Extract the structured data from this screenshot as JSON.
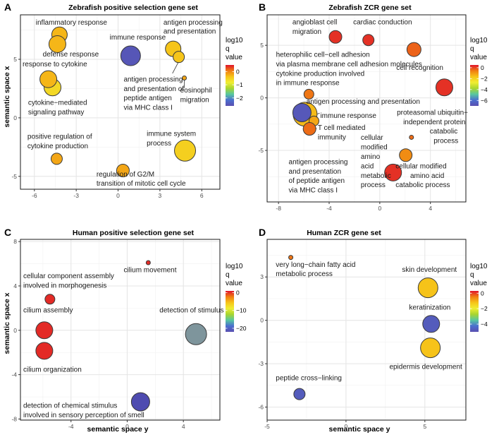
{
  "palette": [
    "#5a4fb0",
    "#4a6fcf",
    "#58c7a0",
    "#a8d52f",
    "#f0ee32",
    "#f6c419",
    "#f07d12",
    "#e0142c"
  ],
  "chart_data": [
    {
      "type": "scatter",
      "panel": "A",
      "title": "Zebrafish positive selection gene set",
      "xlabel": "",
      "ylabel": "semantic space x",
      "xlim": [
        -7,
        7.3
      ],
      "ylim": [
        -6.1,
        8.8
      ],
      "xticks": [
        -6,
        -3,
        0,
        3,
        6
      ],
      "yticks": [
        -5,
        0,
        5
      ],
      "legend": {
        "title": [
          "log10",
          "q",
          "value"
        ],
        "min": -2.6,
        "max": 0.5,
        "ticks": [
          0,
          -1,
          -2
        ]
      },
      "points": [
        {
          "x": -4.2,
          "y": 7.1,
          "color": -0.3,
          "size": 11,
          "label": "inflammatory response"
        },
        {
          "x": -4.35,
          "y": 6.3,
          "color": -0.3,
          "size": 12,
          "label": "defense response"
        },
        {
          "x": -4.7,
          "y": 2.6,
          "color": -0.6,
          "size": 12
        },
        {
          "x": -5.0,
          "y": 3.3,
          "color": -0.3,
          "size": 12,
          "label": "response to cytokine"
        },
        {
          "x": 0.9,
          "y": 5.3,
          "color": -2.5,
          "size": 14,
          "label": "immune response"
        },
        {
          "x": 3.95,
          "y": 5.9,
          "color": -0.4,
          "size": 11,
          "label": "antigen processing and presentation"
        },
        {
          "x": 4.35,
          "y": 5.2,
          "color": -0.4,
          "size": 8,
          "label": "antigen processing and presentation of peptide antigen via MHC class I"
        },
        {
          "x": 4.75,
          "y": 3.4,
          "color": -0.2,
          "size": 3,
          "label": "eosinophil migration"
        },
        {
          "x": -4.4,
          "y": -3.5,
          "color": -0.2,
          "size": 8,
          "label": "positive regulation of cytokine production"
        },
        {
          "x": 0.35,
          "y": -4.5,
          "color": -0.2,
          "size": 9,
          "label": "regulation of G2/M transition of mitotic cell cycle"
        },
        {
          "x": 4.8,
          "y": -2.8,
          "color": -0.5,
          "size": 15,
          "label": "immune system process"
        }
      ],
      "annotations": [
        {
          "text": "inflammatory response",
          "x": -5.9,
          "y": 7.95
        },
        {
          "text": "defense response",
          "x": -5.4,
          "y": 5.25
        },
        {
          "text": "response to cytokine",
          "x": -6.85,
          "y": 4.4
        },
        {
          "text": "cytokine−mediated",
          "x": -6.45,
          "y": 1.1
        },
        {
          "text": "signaling pathway",
          "x": -6.45,
          "y": 0.3
        },
        {
          "text": "immune response",
          "x": -0.6,
          "y": 6.7
        },
        {
          "text": "antigen processing",
          "x": 3.25,
          "y": 7.95
        },
        {
          "text": "and presentation",
          "x": 3.25,
          "y": 7.2
        },
        {
          "text": "antigen processing",
          "x": 0.4,
          "y": 3.1
        },
        {
          "text": "and presentation of",
          "x": 0.4,
          "y": 2.3
        },
        {
          "text": "peptide antigen",
          "x": 0.4,
          "y": 1.5
        },
        {
          "text": "via MHC class I",
          "x": 0.4,
          "y": 0.7
        },
        {
          "text": "eosinophil",
          "x": 4.45,
          "y": 2.15
        },
        {
          "text": "migration",
          "x": 4.45,
          "y": 1.35
        },
        {
          "text": "positive regulation of",
          "x": -6.5,
          "y": -1.8
        },
        {
          "text": "cytokine production",
          "x": -6.5,
          "y": -2.6
        },
        {
          "text": "immune system",
          "x": 2.05,
          "y": -1.55
        },
        {
          "text": "process",
          "x": 2.05,
          "y": -2.35
        },
        {
          "text": "regulation of G2/M",
          "x": -1.55,
          "y": -5.0
        },
        {
          "text": "transition of mitotic cell cycle",
          "x": -1.55,
          "y": -5.8
        }
      ],
      "leaders": [
        {
          "x1": 4.3,
          "y1": 4.7,
          "x2": 3.9,
          "y2": 3.8
        },
        {
          "x1": 4.75,
          "y1": 3.4,
          "x2": 4.75,
          "y2": 2.55
        }
      ]
    },
    {
      "type": "scatter",
      "panel": "B",
      "title": "Zebrafish ZCR gene set",
      "xlabel": "",
      "ylabel": "",
      "xlim": [
        -8.9,
        6.8
      ],
      "ylim": [
        -9.9,
        7.9
      ],
      "xticks": [
        -8,
        -4,
        0,
        4
      ],
      "yticks": [
        -5,
        0,
        5
      ],
      "legend": {
        "title": [
          "log10",
          "q",
          "value"
        ],
        "min": -7,
        "max": 0.5,
        "ticks": [
          0,
          -2,
          -4,
          -6
        ]
      },
      "points": [
        {
          "x": -3.5,
          "y": 5.8,
          "color": 0.2,
          "size": 9,
          "label": "angioblast cell migration"
        },
        {
          "x": -0.9,
          "y": 5.5,
          "color": 0.2,
          "size": 8,
          "label": "cardiac conduction"
        },
        {
          "x": 2.7,
          "y": 4.6,
          "color": -0.3,
          "size": 10,
          "label": "heterophilic cell-cell adhesion via plasma membrane cell adhesion molecules"
        },
        {
          "x": 5.1,
          "y": 1.0,
          "color": 0.2,
          "size": 12,
          "label": "cell recognition"
        },
        {
          "x": -5.6,
          "y": 0.35,
          "color": -0.5,
          "size": 7,
          "label": "cytokine production involved in immune response"
        },
        {
          "x": -5.9,
          "y": -1.55,
          "color": -1.5,
          "size": 17
        },
        {
          "x": -6.15,
          "y": -1.4,
          "color": -6.7,
          "size": 13
        },
        {
          "x": -5.2,
          "y": -2.2,
          "color": -1.2,
          "size": 7,
          "label": "T cell mediated immunity"
        },
        {
          "x": -5.55,
          "y": -2.95,
          "color": -0.4,
          "size": 9
        },
        {
          "x": 2.5,
          "y": -3.75,
          "color": -0.4,
          "size": 3,
          "label": "proteasomal ubiquitin-independent protein catabolic process"
        },
        {
          "x": 1.05,
          "y": -7.1,
          "color": 0.2,
          "size": 12
        },
        {
          "x": 2.05,
          "y": -5.45,
          "color": -0.8,
          "size": 9,
          "label": "cellular modified amino acid catabolic process"
        }
      ],
      "annotations": [
        {
          "text": "angioblast cell",
          "x": -6.9,
          "y": 7.0
        },
        {
          "text": "migration",
          "x": -6.9,
          "y": 6.1
        },
        {
          "text": "cardiac conduction",
          "x": -2.1,
          "y": 7.0
        },
        {
          "text": "heterophilic cell−cell adhesion",
          "x": -8.2,
          "y": 3.9
        },
        {
          "text": "via plasma membrane cell adhesion molecules",
          "x": -8.2,
          "y": 3.0
        },
        {
          "text": "cell recognition",
          "x": 1.3,
          "y": 2.65
        },
        {
          "text": "cytokine production involved",
          "x": -8.2,
          "y": 2.1
        },
        {
          "text": "in immune response",
          "x": -8.2,
          "y": 1.2
        },
        {
          "text": "antigen processing and presentation",
          "x": -5.8,
          "y": -0.55
        },
        {
          "text": "immune response",
          "x": -4.7,
          "y": -1.9
        },
        {
          "text": "T cell mediated",
          "x": -4.9,
          "y": -3.05
        },
        {
          "text": "immunity",
          "x": -4.9,
          "y": -3.95
        },
        {
          "text": "proteasomal ubiquitin−",
          "x": 1.35,
          "y": -1.6
        },
        {
          "text": "independent protein",
          "x": 1.85,
          "y": -2.5
        },
        {
          "text": "catabolic",
          "x": 3.95,
          "y": -3.4
        },
        {
          "text": "process",
          "x": 4.25,
          "y": -4.3
        },
        {
          "text": "antigen processing",
          "x": -7.2,
          "y": -6.3
        },
        {
          "text": "and presentation",
          "x": -7.2,
          "y": -7.2
        },
        {
          "text": "of peptide antigen",
          "x": -7.2,
          "y": -8.1
        },
        {
          "text": "via MHC class I",
          "x": -7.2,
          "y": -9.0
        },
        {
          "text": "cellular",
          "x": -1.5,
          "y": -4.0
        },
        {
          "text": "modified",
          "x": -1.5,
          "y": -4.9
        },
        {
          "text": "amino",
          "x": -1.5,
          "y": -5.8
        },
        {
          "text": "acid",
          "x": -1.5,
          "y": -6.7
        },
        {
          "text": "metabolic",
          "x": -1.5,
          "y": -7.6
        },
        {
          "text": "process",
          "x": -1.5,
          "y": -8.5
        },
        {
          "text": "cellular modified",
          "x": 1.25,
          "y": -6.7
        },
        {
          "text": "amino acid",
          "x": 2.4,
          "y": -7.6
        },
        {
          "text": "catabolic process",
          "x": 1.25,
          "y": -8.5
        }
      ],
      "leaders": [
        {
          "x1": -5.4,
          "y1": -1.75,
          "x2": -4.75,
          "y2": -1.45
        },
        {
          "x1": -5.2,
          "y1": -2.6,
          "x2": -5.0,
          "y2": -2.95
        },
        {
          "x1": 2.5,
          "y1": -3.75,
          "x2": 2.5,
          "y2": -3.75
        }
      ]
    },
    {
      "type": "scatter",
      "panel": "C",
      "title": "Human positive selection gene set",
      "xlabel": "semantic space y",
      "ylabel": "semantic space x",
      "xlim": [
        -7.6,
        6.6
      ],
      "ylim": [
        -8.1,
        8.2
      ],
      "xticks": [
        -4,
        0,
        4
      ],
      "yticks": [
        -8,
        -4,
        0,
        4,
        8
      ],
      "legend": {
        "title": [
          "log10",
          "q",
          "value"
        ],
        "min": -22,
        "max": 1,
        "ticks": [
          0,
          -10,
          -20
        ]
      },
      "points": [
        {
          "x": 1.5,
          "y": 6.1,
          "color": 0.3,
          "size": 3,
          "label": "cilium movement"
        },
        {
          "x": -5.5,
          "y": 2.8,
          "color": 0.3,
          "size": 7,
          "label": "cellular component assembly involved in morphogenesis"
        },
        {
          "x": -5.9,
          "y": 0.0,
          "color": 0.3,
          "size": 12,
          "label": "cilium assembly"
        },
        {
          "x": -5.9,
          "y": -1.85,
          "color": 0.3,
          "size": 12,
          "label": "cilium organization"
        },
        {
          "x": 4.9,
          "y": -0.35,
          "color": -22,
          "size": 15,
          "label": "detection of stimulus",
          "fill": "#7e959c"
        },
        {
          "x": 0.95,
          "y": -6.45,
          "color": -22,
          "size": 13,
          "label": "detection of chemical stimulus involved in sensory perception of smell",
          "fill": "#4e4bb0"
        }
      ],
      "annotations": [
        {
          "text": "cilium movement",
          "x": -0.25,
          "y": 5.25
        },
        {
          "text": "cellular component assembly",
          "x": -7.4,
          "y": 4.7
        },
        {
          "text": "involved in morphogenesis",
          "x": -7.4,
          "y": 3.85
        },
        {
          "text": "cilium assembly",
          "x": -7.4,
          "y": 1.6
        },
        {
          "text": "detection of stimulus",
          "x": 2.3,
          "y": 1.6
        },
        {
          "text": "cilium organization",
          "x": -7.4,
          "y": -3.75
        },
        {
          "text": "detection of chemical stimulus",
          "x": -7.4,
          "y": -7.0
        },
        {
          "text": "involved in sensory perception of smell",
          "x": -7.4,
          "y": -7.85
        }
      ],
      "leaders": []
    },
    {
      "type": "scatter",
      "panel": "D",
      "title": "Human ZCR gene set",
      "xlabel": "semantic space y",
      "ylabel": "",
      "xlim": [
        -5.0,
        7.6
      ],
      "ylim": [
        -6.9,
        5.6
      ],
      "xticks": [
        -5,
        0,
        5
      ],
      "yticks": [
        -6,
        -3,
        0,
        3
      ],
      "legend": {
        "title": [
          "log10",
          "q",
          "value"
        ],
        "min": -5,
        "max": 0.3,
        "ticks": [
          0,
          -2,
          -4
        ]
      },
      "points": [
        {
          "x": -3.5,
          "y": 4.35,
          "color": -0.4,
          "size": 3,
          "label": "very long-chain fatty acid metabolic process"
        },
        {
          "x": 5.2,
          "y": 2.25,
          "color": -1.2,
          "size": 14,
          "label": "skin development"
        },
        {
          "x": 5.4,
          "y": -0.25,
          "color": -4.7,
          "size": 12,
          "label": "keratinization"
        },
        {
          "x": 5.35,
          "y": -1.9,
          "color": -1.2,
          "size": 14,
          "label": "epidermis development"
        },
        {
          "x": -2.95,
          "y": -5.1,
          "color": -4.7,
          "size": 8,
          "label": "peptide cross-linking"
        }
      ],
      "annotations": [
        {
          "text": "very long−chain fatty acid",
          "x": -4.45,
          "y": 3.7
        },
        {
          "text": "metabolic process",
          "x": -4.45,
          "y": 3.05
        },
        {
          "text": "skin development",
          "x": 3.55,
          "y": 3.35
        },
        {
          "text": "keratinization",
          "x": 4.0,
          "y": 0.75
        },
        {
          "text": "epidermis development",
          "x": 2.75,
          "y": -3.35
        },
        {
          "text": "peptide cross−linking",
          "x": -4.45,
          "y": -4.15
        }
      ],
      "leaders": []
    }
  ]
}
